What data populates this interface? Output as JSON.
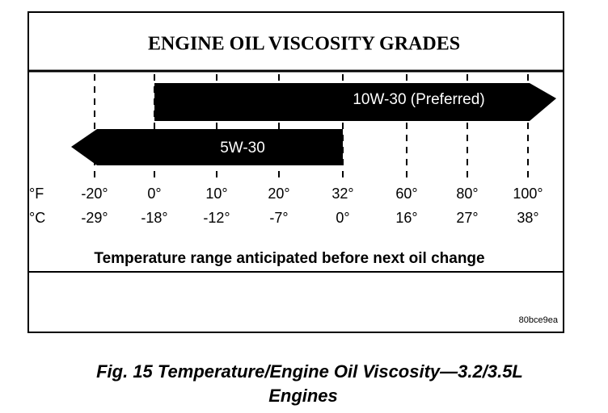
{
  "title": "ENGINE OIL VISCOSITY GRADES",
  "grades": [
    "10W-30 (Preferred)",
    "5W-30"
  ],
  "fahrenheit": {
    "unit": "°F",
    "labels": [
      "-20°",
      "0°",
      "10°",
      "20°",
      "32°",
      "60°",
      "80°",
      "100°"
    ]
  },
  "celsius": {
    "unit": "°C",
    "labels": [
      "-29°",
      "-18°",
      "-12°",
      "-7°",
      "0°",
      "16°",
      "27°",
      "38°"
    ]
  },
  "axis_label": "Temperature range anticipated before next oil change",
  "code": "80bce9ea",
  "caption": [
    "Fig. 15 Temperature/Engine Oil Viscosity—3.2/3.5L",
    "Engines"
  ]
}
